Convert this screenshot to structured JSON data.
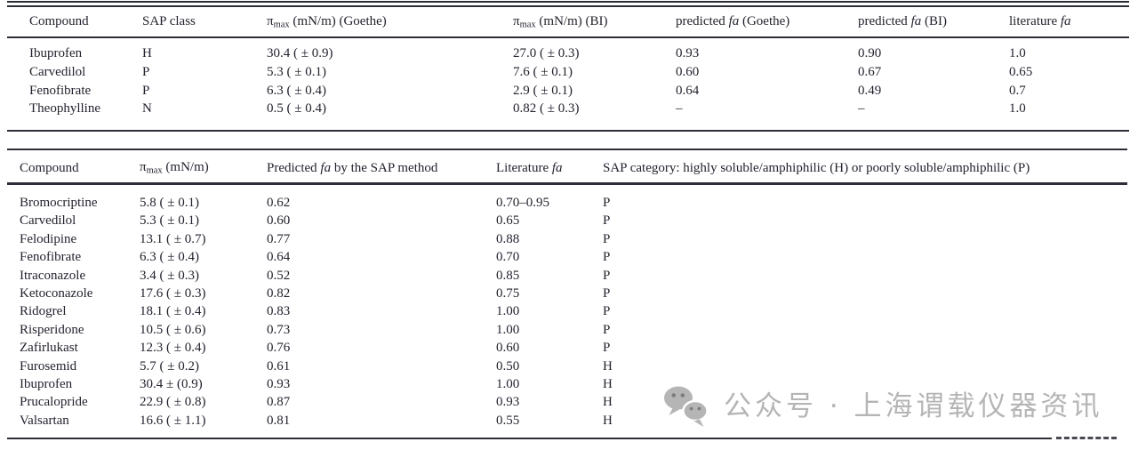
{
  "colors": {
    "text": "#23232f",
    "rule": "#2e2e38",
    "watermark": "#b5b5b5"
  },
  "table1": {
    "headers": [
      [
        {
          "t": "Compound"
        }
      ],
      [
        {
          "t": "SAP class"
        }
      ],
      [
        {
          "t": "π"
        },
        {
          "t": "max",
          "s": "sub"
        },
        {
          "t": " (mN/m) (Goethe)"
        }
      ],
      [
        {
          "t": "π"
        },
        {
          "t": "max",
          "s": "sub"
        },
        {
          "t": " (mN/m) (BI)"
        }
      ],
      [
        {
          "t": "predicted "
        },
        {
          "t": "fa",
          "s": "i"
        },
        {
          "t": " (Goethe)"
        }
      ],
      [
        {
          "t": "predicted "
        },
        {
          "t": "fa",
          "s": "i"
        },
        {
          "t": " (BI)"
        }
      ],
      [
        {
          "t": "literature "
        },
        {
          "t": "fa",
          "s": "i"
        }
      ]
    ],
    "rows": [
      [
        "Ibuprofen",
        "H",
        "30.4 ( ± 0.9)",
        "27.0 ( ± 0.3)",
        "0.93",
        "0.90",
        "1.0"
      ],
      [
        "Carvedilol",
        "P",
        "5.3 ( ± 0.1)",
        "7.6 ( ± 0.1)",
        "0.60",
        "0.67",
        "0.65"
      ],
      [
        "Fenofibrate",
        "P",
        "6.3 ( ± 0.4)",
        "2.9 ( ± 0.1)",
        "0.64",
        "0.49",
        "0.7"
      ],
      [
        "Theophylline",
        "N",
        "0.5 ( ± 0.4)",
        "0.82 ( ± 0.3)",
        "–",
        "–",
        "1.0"
      ]
    ]
  },
  "table2": {
    "headers": [
      [
        {
          "t": "Compound"
        }
      ],
      [
        {
          "t": "π"
        },
        {
          "t": "max",
          "s": "sub"
        },
        {
          "t": " (mN/m)"
        }
      ],
      [
        {
          "t": "Predicted "
        },
        {
          "t": "fa",
          "s": "i"
        },
        {
          "t": " by the SAP method"
        }
      ],
      [
        {
          "t": "Literature "
        },
        {
          "t": "fa",
          "s": "i"
        }
      ],
      [
        {
          "t": "SAP category: highly soluble/amphiphilic (H) or poorly soluble/amphiphilic (P)"
        }
      ]
    ],
    "rows": [
      [
        "Bromocriptine",
        "5.8 ( ± 0.1)",
        "0.62",
        "0.70–0.95",
        "P"
      ],
      [
        "Carvedilol",
        "5.3 ( ± 0.1)",
        "0.60",
        "0.65",
        "P"
      ],
      [
        "Felodipine",
        "13.1 ( ± 0.7)",
        "0.77",
        "0.88",
        "P"
      ],
      [
        "Fenofibrate",
        "6.3 ( ± 0.4)",
        "0.64",
        "0.70",
        "P"
      ],
      [
        "Itraconazole",
        "3.4 ( ± 0.3)",
        "0.52",
        "0.85",
        "P"
      ],
      [
        "Ketoconazole",
        "17.6 ( ± 0.3)",
        "0.82",
        "0.75",
        "P"
      ],
      [
        "Ridogrel",
        "18.1 ( ± 0.4)",
        "0.83",
        "1.00",
        "P"
      ],
      [
        "Risperidone",
        "10.5 ( ± 0.6)",
        "0.73",
        "1.00",
        "P"
      ],
      [
        "Zafirlukast",
        "12.3 ( ± 0.4)",
        "0.76",
        "0.60",
        "P"
      ],
      [
        "Furosemid",
        "5.7 ( ± 0.2)",
        "0.61",
        "0.50",
        "H"
      ],
      [
        "Ibuprofen",
        "30.4 ± (0.9)",
        "0.93",
        "1.00",
        "H"
      ],
      [
        "Prucalopride",
        "22.9 ( ± 0.8)",
        "0.87",
        "0.93",
        "H"
      ],
      [
        "Valsartan",
        "16.6 ( ± 1.1)",
        "0.81",
        "0.55",
        "H"
      ]
    ]
  },
  "watermark": {
    "icon": "wechat-icon",
    "text": "公众号 · 上海谓载仪器资讯"
  }
}
